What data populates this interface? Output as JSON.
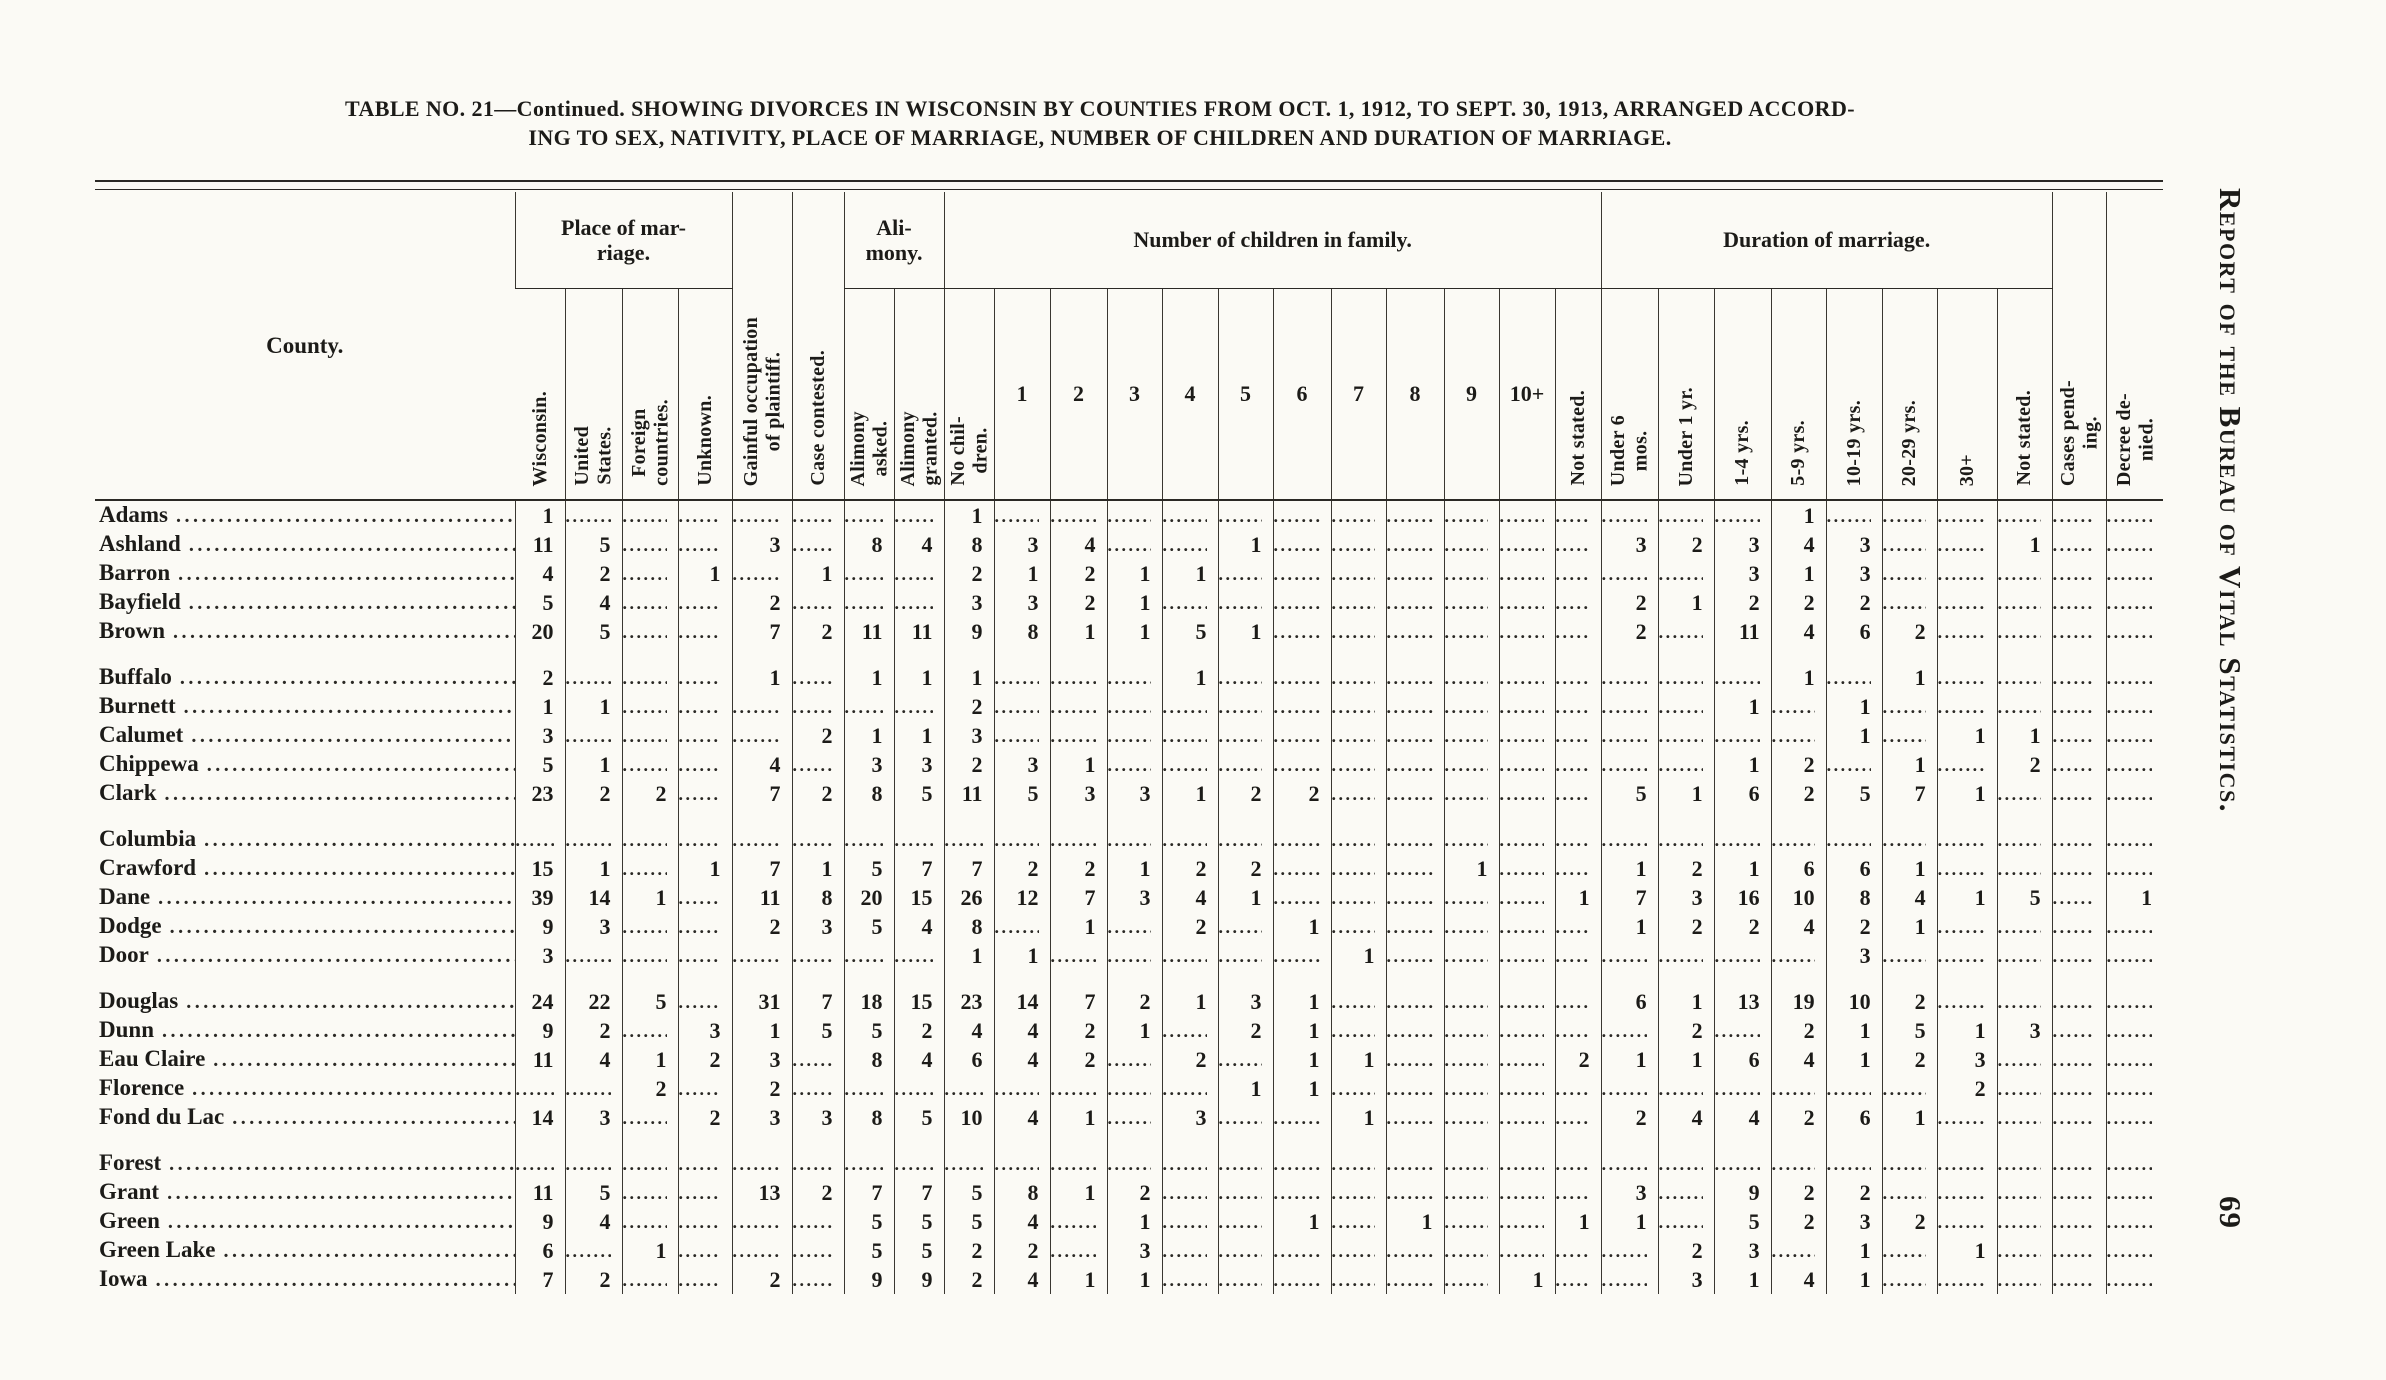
{
  "page": {
    "title_line1": "TABLE NO. 21—Continued.  SHOWING DIVORCES IN WISCONSIN BY COUNTIES FROM OCT. 1, 1912, TO SEPT. 30, 1913, ARRANGED ACCORD-",
    "title_line2": "ING TO SEX, NATIVITY, PLACE OF MARRIAGE, NUMBER OF CHILDREN AND DURATION OF MARRIAGE.",
    "side_text": "Report of the Bureau of Vital Statistics.",
    "page_number": "69"
  },
  "table": {
    "groups": {
      "place": "Place of mar-\nriage.",
      "alimony": "Ali-\nmony.",
      "children": "Number of children in family.",
      "duration": "Duration of marriage."
    },
    "cols": {
      "county": "County.",
      "wis": "Wisconsin.",
      "us": "United\nStates.",
      "foreign": "Foreign\ncountries.",
      "unknown": "Unknown.",
      "gainful": "Gainful occupation\nof plaintiff.",
      "contested": "Case contested.",
      "alim_asked": "Alimony\nasked.",
      "alim_granted": "Alimony\ngranted.",
      "ch_none": "No chil-\ndren.",
      "c1": "1",
      "c2": "2",
      "c3": "3",
      "c4": "4",
      "c5": "5",
      "c6": "6",
      "c7": "7",
      "c8": "8",
      "c9": "9",
      "c10": "10+",
      "ch_ns": "Not stated.",
      "u6": "Under 6\nmos.",
      "u1": "Under 1 yr.",
      "y1_4": "1-4 yrs.",
      "y5_9": "5-9 yrs.",
      "y10_19": "10-19 yrs.",
      "y20_29": "20-29 yrs.",
      "y30": "30+",
      "dur_ns": "Not stated.",
      "pending": "Cases pend-\ning.",
      "denied": "Decree de-\nnied."
    },
    "value_order": [
      "wis",
      "us",
      "foreign",
      "unknown",
      "gainful",
      "contested",
      "alim_asked",
      "alim_granted",
      "ch_none",
      "c1",
      "c2",
      "c3",
      "c4",
      "c5",
      "c6",
      "c7",
      "c8",
      "c9",
      "c10",
      "ch_ns",
      "u6",
      "u1",
      "y1_4",
      "y5_9",
      "y10_19",
      "y20_29",
      "y30",
      "dur_ns",
      "pending",
      "denied"
    ],
    "rows": [
      {
        "county": "Adams",
        "group_start": false,
        "values": [
          1,
          null,
          null,
          null,
          null,
          null,
          null,
          null,
          1,
          null,
          null,
          null,
          null,
          null,
          null,
          null,
          null,
          null,
          null,
          null,
          null,
          null,
          null,
          1,
          null,
          null,
          null,
          null,
          null,
          null
        ]
      },
      {
        "county": "Ashland",
        "group_start": false,
        "values": [
          11,
          5,
          null,
          null,
          3,
          null,
          8,
          4,
          8,
          3,
          4,
          null,
          null,
          1,
          null,
          null,
          null,
          null,
          null,
          null,
          3,
          2,
          3,
          4,
          3,
          null,
          null,
          1,
          null,
          null
        ]
      },
      {
        "county": "Barron",
        "group_start": false,
        "values": [
          4,
          2,
          null,
          1,
          null,
          1,
          null,
          null,
          2,
          1,
          2,
          1,
          1,
          null,
          null,
          null,
          null,
          null,
          null,
          null,
          null,
          null,
          3,
          1,
          3,
          null,
          null,
          null,
          null,
          null
        ]
      },
      {
        "county": "Bayfield",
        "group_start": false,
        "values": [
          5,
          4,
          null,
          null,
          2,
          null,
          null,
          null,
          3,
          3,
          2,
          1,
          null,
          null,
          null,
          null,
          null,
          null,
          null,
          null,
          2,
          1,
          2,
          2,
          2,
          null,
          null,
          null,
          null,
          null
        ]
      },
      {
        "county": "Brown",
        "group_start": false,
        "values": [
          20,
          5,
          null,
          null,
          7,
          2,
          11,
          11,
          9,
          8,
          1,
          1,
          5,
          1,
          null,
          null,
          null,
          null,
          null,
          null,
          2,
          null,
          11,
          4,
          6,
          2,
          null,
          null,
          null,
          null
        ]
      },
      {
        "county": "Buffalo",
        "group_start": true,
        "values": [
          2,
          null,
          null,
          null,
          1,
          null,
          1,
          1,
          1,
          null,
          null,
          null,
          1,
          null,
          null,
          null,
          null,
          null,
          null,
          null,
          null,
          null,
          null,
          1,
          null,
          1,
          null,
          null,
          null,
          null
        ]
      },
      {
        "county": "Burnett",
        "group_start": false,
        "values": [
          1,
          1,
          null,
          null,
          null,
          null,
          null,
          null,
          2,
          null,
          null,
          null,
          null,
          null,
          null,
          null,
          null,
          null,
          null,
          null,
          null,
          null,
          1,
          null,
          1,
          null,
          null,
          null,
          null,
          null
        ]
      },
      {
        "county": "Calumet",
        "group_start": false,
        "values": [
          3,
          null,
          null,
          null,
          null,
          2,
          1,
          1,
          3,
          null,
          null,
          null,
          null,
          null,
          null,
          null,
          null,
          null,
          null,
          null,
          null,
          null,
          null,
          null,
          1,
          null,
          1,
          1,
          null,
          null
        ]
      },
      {
        "county": "Chippewa",
        "group_start": false,
        "values": [
          5,
          1,
          null,
          null,
          4,
          null,
          3,
          3,
          2,
          3,
          1,
          null,
          null,
          null,
          null,
          null,
          null,
          null,
          null,
          null,
          null,
          null,
          1,
          2,
          null,
          1,
          null,
          2,
          null,
          null
        ]
      },
      {
        "county": "Clark",
        "group_start": false,
        "values": [
          23,
          2,
          2,
          null,
          7,
          2,
          8,
          5,
          11,
          5,
          3,
          3,
          1,
          2,
          2,
          null,
          null,
          null,
          null,
          null,
          5,
          1,
          6,
          2,
          5,
          7,
          1,
          null,
          null,
          null
        ]
      },
      {
        "county": "Columbia",
        "group_start": true,
        "values": [
          null,
          null,
          null,
          null,
          null,
          null,
          null,
          null,
          null,
          null,
          null,
          null,
          null,
          null,
          null,
          null,
          null,
          null,
          null,
          null,
          null,
          null,
          null,
          null,
          null,
          null,
          null,
          null,
          null,
          null
        ]
      },
      {
        "county": "Crawford",
        "group_start": false,
        "values": [
          15,
          1,
          null,
          1,
          7,
          1,
          5,
          7,
          7,
          2,
          2,
          1,
          2,
          2,
          null,
          null,
          null,
          1,
          null,
          null,
          1,
          2,
          1,
          6,
          6,
          1,
          null,
          null,
          null,
          null
        ]
      },
      {
        "county": "Dane",
        "group_start": false,
        "values": [
          39,
          14,
          1,
          null,
          11,
          8,
          20,
          15,
          26,
          12,
          7,
          3,
          4,
          1,
          null,
          null,
          null,
          null,
          null,
          1,
          7,
          3,
          16,
          10,
          8,
          4,
          1,
          5,
          null,
          1
        ]
      },
      {
        "county": "Dodge",
        "group_start": false,
        "values": [
          9,
          3,
          null,
          null,
          2,
          3,
          5,
          4,
          8,
          null,
          1,
          null,
          2,
          null,
          1,
          null,
          null,
          null,
          null,
          null,
          1,
          2,
          2,
          4,
          2,
          1,
          null,
          null,
          null,
          null
        ]
      },
      {
        "county": "Door",
        "group_start": false,
        "values": [
          3,
          null,
          null,
          null,
          null,
          null,
          null,
          null,
          1,
          1,
          null,
          null,
          null,
          null,
          null,
          1,
          null,
          null,
          null,
          null,
          null,
          null,
          null,
          null,
          3,
          null,
          null,
          null,
          null,
          null
        ]
      },
      {
        "county": "Douglas",
        "group_start": true,
        "values": [
          24,
          22,
          5,
          null,
          31,
          7,
          18,
          15,
          23,
          14,
          7,
          2,
          1,
          3,
          1,
          null,
          null,
          null,
          null,
          null,
          6,
          1,
          13,
          19,
          10,
          2,
          null,
          null,
          null,
          null
        ]
      },
      {
        "county": "Dunn",
        "group_start": false,
        "values": [
          9,
          2,
          null,
          3,
          1,
          5,
          5,
          2,
          4,
          4,
          2,
          1,
          null,
          2,
          1,
          null,
          null,
          null,
          null,
          null,
          null,
          2,
          null,
          2,
          1,
          5,
          1,
          3,
          null,
          null
        ]
      },
      {
        "county": "Eau Claire",
        "group_start": false,
        "values": [
          11,
          4,
          1,
          2,
          3,
          null,
          8,
          4,
          6,
          4,
          2,
          null,
          2,
          null,
          1,
          1,
          null,
          null,
          null,
          2,
          1,
          1,
          6,
          4,
          1,
          2,
          3,
          null,
          null,
          null
        ]
      },
      {
        "county": "Florence",
        "group_start": false,
        "values": [
          null,
          null,
          2,
          null,
          2,
          null,
          null,
          null,
          null,
          null,
          null,
          null,
          null,
          1,
          1,
          null,
          null,
          null,
          null,
          null,
          null,
          null,
          null,
          null,
          null,
          null,
          2,
          null,
          null,
          null
        ]
      },
      {
        "county": "Fond du Lac",
        "group_start": false,
        "values": [
          14,
          3,
          null,
          2,
          3,
          3,
          8,
          5,
          10,
          4,
          1,
          null,
          3,
          null,
          null,
          1,
          null,
          null,
          null,
          null,
          2,
          4,
          4,
          2,
          6,
          1,
          null,
          null,
          null,
          null
        ]
      },
      {
        "county": "Forest",
        "group_start": true,
        "values": [
          null,
          null,
          null,
          null,
          null,
          null,
          null,
          null,
          null,
          null,
          null,
          null,
          null,
          null,
          null,
          null,
          null,
          null,
          null,
          null,
          null,
          null,
          null,
          null,
          null,
          null,
          null,
          null,
          null,
          null
        ]
      },
      {
        "county": "Grant",
        "group_start": false,
        "values": [
          11,
          5,
          null,
          null,
          13,
          2,
          7,
          7,
          5,
          8,
          1,
          2,
          null,
          null,
          null,
          null,
          null,
          null,
          null,
          null,
          3,
          null,
          9,
          2,
          2,
          null,
          null,
          null,
          null,
          null
        ]
      },
      {
        "county": "Green",
        "group_start": false,
        "values": [
          9,
          4,
          null,
          null,
          null,
          null,
          5,
          5,
          5,
          4,
          null,
          1,
          null,
          null,
          1,
          null,
          1,
          null,
          null,
          1,
          1,
          null,
          5,
          2,
          3,
          2,
          null,
          null,
          null,
          null
        ]
      },
      {
        "county": "Green Lake",
        "group_start": false,
        "values": [
          6,
          null,
          1,
          null,
          null,
          null,
          5,
          5,
          2,
          2,
          null,
          3,
          null,
          null,
          null,
          null,
          null,
          null,
          null,
          null,
          null,
          2,
          3,
          null,
          1,
          null,
          1,
          null,
          null,
          null
        ]
      },
      {
        "county": "Iowa",
        "group_start": false,
        "values": [
          7,
          2,
          null,
          null,
          2,
          null,
          9,
          9,
          2,
          4,
          1,
          1,
          null,
          null,
          null,
          null,
          null,
          null,
          1,
          null,
          null,
          3,
          1,
          4,
          1,
          null,
          null,
          null,
          null,
          null
        ]
      }
    ]
  }
}
